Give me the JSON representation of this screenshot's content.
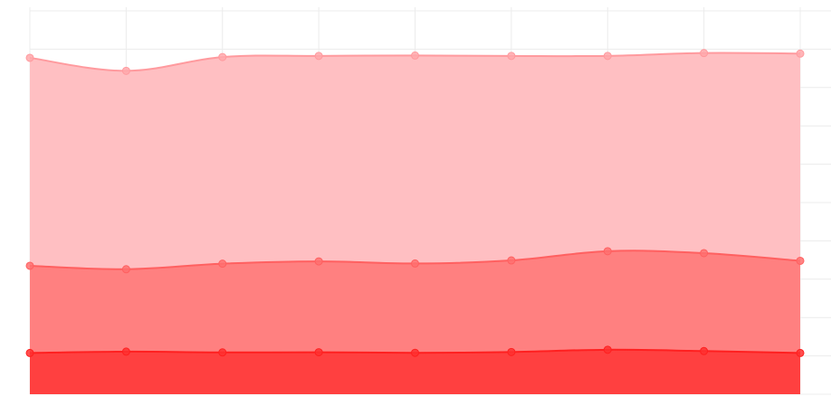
{
  "chart_data": {
    "type": "area",
    "stacked": true,
    "x": [
      1,
      2,
      3,
      4,
      5,
      6,
      7,
      8,
      9
    ],
    "ylim": [
      0,
      200
    ],
    "grid": true,
    "legend": "none",
    "series": [
      {
        "values": [
          21.5,
          22.2,
          21.8,
          21.9,
          21.6,
          22.0,
          23.2,
          22.5,
          21.5
        ],
        "color": "#ff4040"
      },
      {
        "values": [
          45.5,
          43.0,
          46.3,
          47.4,
          46.6,
          47.8,
          51.4,
          51.1,
          48.1
        ],
        "color": "#ff8080"
      },
      {
        "values": [
          108.5,
          103.5,
          107.8,
          107.2,
          108.5,
          106.7,
          101.9,
          104.4,
          108.1
        ],
        "color": "#ffbfc2"
      }
    ]
  }
}
